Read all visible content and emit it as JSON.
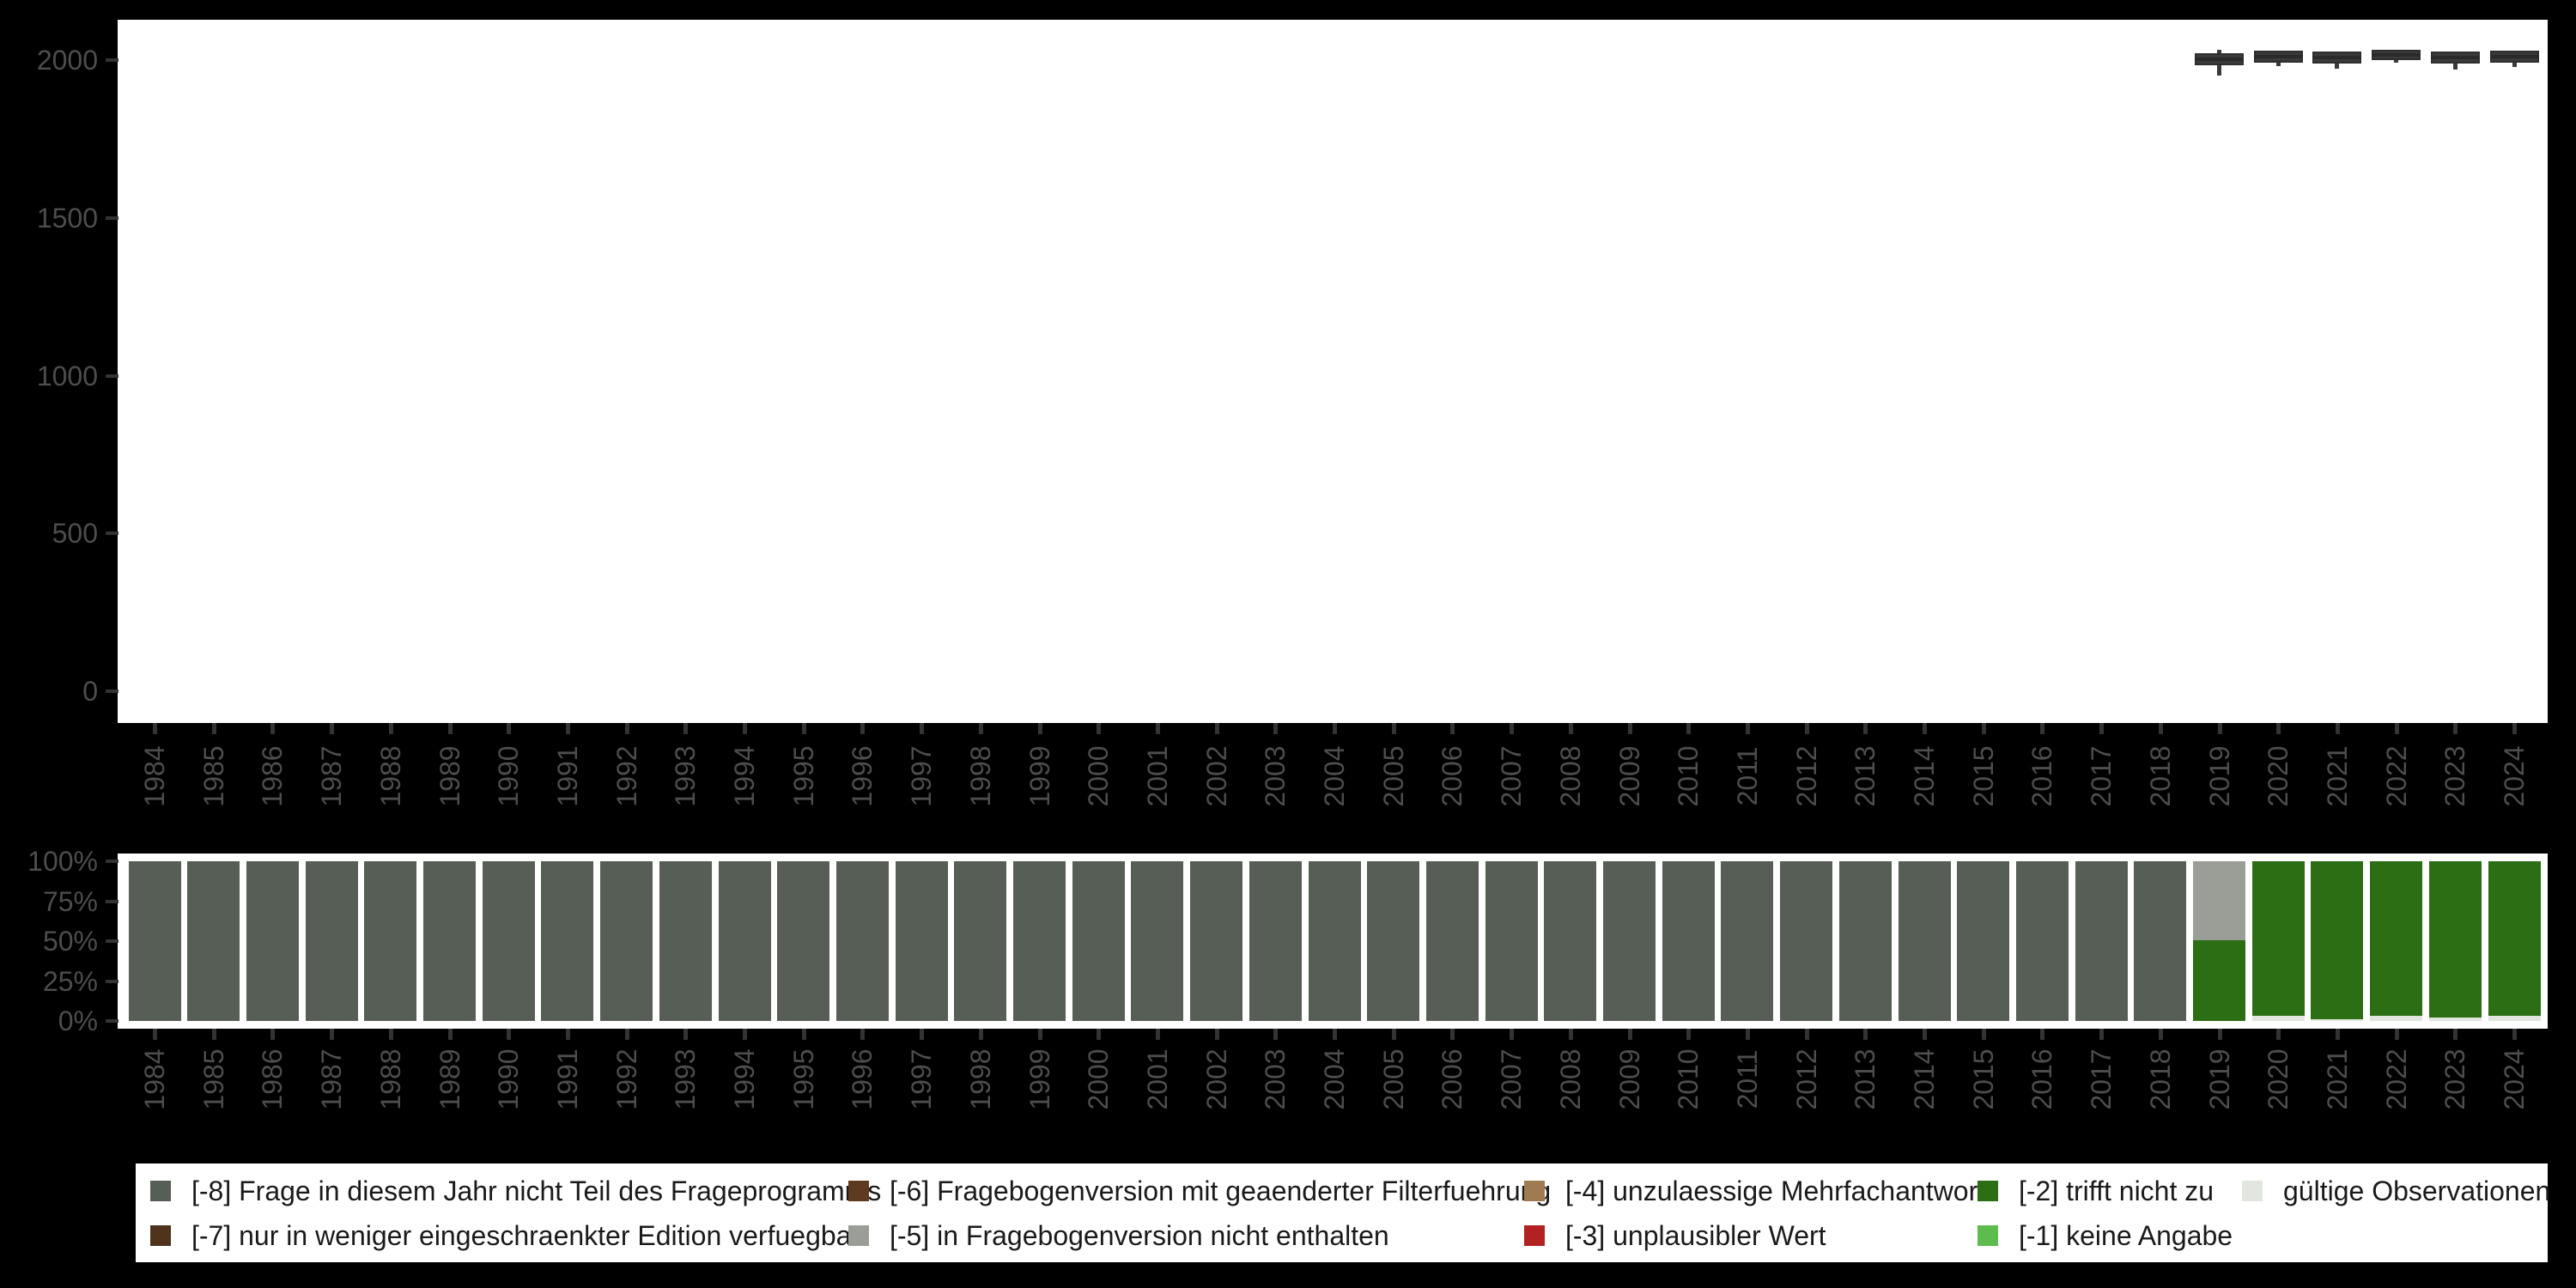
{
  "page": {
    "background_color": "#000000",
    "plot_background_color": "#ffffff",
    "axis_text_color": "#4d4d4d",
    "tick_color": "#333333",
    "legend_text_color": "#1a1a1a"
  },
  "colors": {
    "-8": "#565e55",
    "-7": "#4f331d",
    "-6": "#5e3a1f",
    "-5": "#9a9e97",
    "-4": "#a07a50",
    "-3": "#b22222",
    "-2": "#2b6e14",
    "-1": "#5ebb4e",
    "valid": "#e1e6df",
    "boxplot": "#3a3a3a"
  },
  "years": [
    "1984",
    "1985",
    "1986",
    "1987",
    "1988",
    "1989",
    "1990",
    "1991",
    "1992",
    "1993",
    "1994",
    "1995",
    "1996",
    "1997",
    "1998",
    "1999",
    "2000",
    "2001",
    "2002",
    "2003",
    "2004",
    "2005",
    "2006",
    "2007",
    "2008",
    "2009",
    "2010",
    "2011",
    "2012",
    "2013",
    "2014",
    "2015",
    "2016",
    "2017",
    "2018",
    "2019",
    "2020",
    "2021",
    "2022",
    "2023",
    "2024"
  ],
  "chart_data": [
    {
      "type": "boxplot",
      "title": "",
      "xlabel": "",
      "ylabel": "",
      "categories": [
        "1984",
        "1985",
        "1986",
        "1987",
        "1988",
        "1989",
        "1990",
        "1991",
        "1992",
        "1993",
        "1994",
        "1995",
        "1996",
        "1997",
        "1998",
        "1999",
        "2000",
        "2001",
        "2002",
        "2003",
        "2004",
        "2005",
        "2006",
        "2007",
        "2008",
        "2009",
        "2010",
        "2011",
        "2012",
        "2013",
        "2014",
        "2015",
        "2016",
        "2017",
        "2018",
        "2019",
        "2020",
        "2021",
        "2022",
        "2023",
        "2024"
      ],
      "grid": "off",
      "legend_position": "none",
      "ylim": [
        -100,
        2130
      ],
      "yticks": [
        {
          "v": 0,
          "label": "0"
        },
        {
          "v": 500,
          "label": "500"
        },
        {
          "v": 1000,
          "label": "1000"
        },
        {
          "v": 1500,
          "label": "1500"
        },
        {
          "v": 2000,
          "label": "2000"
        }
      ],
      "boxes": [
        {
          "year": "2019",
          "lo": 1951,
          "q1": 1984,
          "med": 2004,
          "q3": 2022,
          "hi": 2032
        },
        {
          "year": "2020",
          "lo": 1981,
          "q1": 1992,
          "med": 2012,
          "q3": 2030,
          "hi": 2030
        },
        {
          "year": "2021",
          "lo": 1973,
          "q1": 1989,
          "med": 2008,
          "q3": 2027,
          "hi": 2027
        },
        {
          "year": "2022",
          "lo": 1992,
          "q1": 2000,
          "med": 2016,
          "q3": 2033,
          "hi": 2033
        },
        {
          "year": "2023",
          "lo": 1970,
          "q1": 1989,
          "med": 2008,
          "q3": 2027,
          "hi": 2027
        },
        {
          "year": "2024",
          "lo": 1978,
          "q1": 1992,
          "med": 2011,
          "q3": 2030,
          "hi": 2030
        }
      ]
    },
    {
      "type": "stacked_bar_percent",
      "title": "",
      "xlabel": "",
      "ylabel": "",
      "grid": "off",
      "legend_position": "bottom",
      "categories": [
        "1984",
        "1985",
        "1986",
        "1987",
        "1988",
        "1989",
        "1990",
        "1991",
        "1992",
        "1993",
        "1994",
        "1995",
        "1996",
        "1997",
        "1998",
        "1999",
        "2000",
        "2001",
        "2002",
        "2003",
        "2004",
        "2005",
        "2006",
        "2007",
        "2008",
        "2009",
        "2010",
        "2011",
        "2012",
        "2013",
        "2014",
        "2015",
        "2016",
        "2017",
        "2018",
        "2019",
        "2020",
        "2021",
        "2022",
        "2023",
        "2024"
      ],
      "yticks": [
        {
          "v": 0,
          "label": "0%"
        },
        {
          "v": 25,
          "label": "25%"
        },
        {
          "v": 50,
          "label": "50%"
        },
        {
          "v": 75,
          "label": "75%"
        },
        {
          "v": 100,
          "label": "100%"
        }
      ],
      "bars": [
        {
          "year": "1984",
          "segments": [
            {
              "key": "-8",
              "pct": 100
            }
          ]
        },
        {
          "year": "1985",
          "segments": [
            {
              "key": "-8",
              "pct": 100
            }
          ]
        },
        {
          "year": "1986",
          "segments": [
            {
              "key": "-8",
              "pct": 100
            }
          ]
        },
        {
          "year": "1987",
          "segments": [
            {
              "key": "-8",
              "pct": 100
            }
          ]
        },
        {
          "year": "1988",
          "segments": [
            {
              "key": "-8",
              "pct": 100
            }
          ]
        },
        {
          "year": "1989",
          "segments": [
            {
              "key": "-8",
              "pct": 100
            }
          ]
        },
        {
          "year": "1990",
          "segments": [
            {
              "key": "-8",
              "pct": 100
            }
          ]
        },
        {
          "year": "1991",
          "segments": [
            {
              "key": "-8",
              "pct": 100
            }
          ]
        },
        {
          "year": "1992",
          "segments": [
            {
              "key": "-8",
              "pct": 100
            }
          ]
        },
        {
          "year": "1993",
          "segments": [
            {
              "key": "-8",
              "pct": 100
            }
          ]
        },
        {
          "year": "1994",
          "segments": [
            {
              "key": "-8",
              "pct": 100
            }
          ]
        },
        {
          "year": "1995",
          "segments": [
            {
              "key": "-8",
              "pct": 100
            }
          ]
        },
        {
          "year": "1996",
          "segments": [
            {
              "key": "-8",
              "pct": 100
            }
          ]
        },
        {
          "year": "1997",
          "segments": [
            {
              "key": "-8",
              "pct": 100
            }
          ]
        },
        {
          "year": "1998",
          "segments": [
            {
              "key": "-8",
              "pct": 100
            }
          ]
        },
        {
          "year": "1999",
          "segments": [
            {
              "key": "-8",
              "pct": 100
            }
          ]
        },
        {
          "year": "2000",
          "segments": [
            {
              "key": "-8",
              "pct": 100
            }
          ]
        },
        {
          "year": "2001",
          "segments": [
            {
              "key": "-8",
              "pct": 100
            }
          ]
        },
        {
          "year": "2002",
          "segments": [
            {
              "key": "-8",
              "pct": 100
            }
          ]
        },
        {
          "year": "2003",
          "segments": [
            {
              "key": "-8",
              "pct": 100
            }
          ]
        },
        {
          "year": "2004",
          "segments": [
            {
              "key": "-8",
              "pct": 100
            }
          ]
        },
        {
          "year": "2005",
          "segments": [
            {
              "key": "-8",
              "pct": 100
            }
          ]
        },
        {
          "year": "2006",
          "segments": [
            {
              "key": "-8",
              "pct": 100
            }
          ]
        },
        {
          "year": "2007",
          "segments": [
            {
              "key": "-8",
              "pct": 100
            }
          ]
        },
        {
          "year": "2008",
          "segments": [
            {
              "key": "-8",
              "pct": 100
            }
          ]
        },
        {
          "year": "2009",
          "segments": [
            {
              "key": "-8",
              "pct": 100
            }
          ]
        },
        {
          "year": "2010",
          "segments": [
            {
              "key": "-8",
              "pct": 100
            }
          ]
        },
        {
          "year": "2011",
          "segments": [
            {
              "key": "-8",
              "pct": 100
            }
          ]
        },
        {
          "year": "2012",
          "segments": [
            {
              "key": "-8",
              "pct": 100
            }
          ]
        },
        {
          "year": "2013",
          "segments": [
            {
              "key": "-8",
              "pct": 100
            }
          ]
        },
        {
          "year": "2014",
          "segments": [
            {
              "key": "-8",
              "pct": 100
            }
          ]
        },
        {
          "year": "2015",
          "segments": [
            {
              "key": "-8",
              "pct": 100
            }
          ]
        },
        {
          "year": "2016",
          "segments": [
            {
              "key": "-8",
              "pct": 100
            }
          ]
        },
        {
          "year": "2017",
          "segments": [
            {
              "key": "-8",
              "pct": 100
            }
          ]
        },
        {
          "year": "2018",
          "segments": [
            {
              "key": "-8",
              "pct": 100
            }
          ]
        },
        {
          "year": "2019",
          "segments": [
            {
              "key": "-2",
              "pct": 50.3
            },
            {
              "key": "-5",
              "pct": 49.7
            }
          ]
        },
        {
          "year": "2020",
          "segments": [
            {
              "key": "valid",
              "pct": 3.2
            },
            {
              "key": "-2",
              "pct": 96.8
            }
          ]
        },
        {
          "year": "2021",
          "segments": [
            {
              "key": "valid",
              "pct": 1.2
            },
            {
              "key": "-2",
              "pct": 98.8
            }
          ]
        },
        {
          "year": "2022",
          "segments": [
            {
              "key": "valid",
              "pct": 3.0
            },
            {
              "key": "-2",
              "pct": 97.0
            }
          ]
        },
        {
          "year": "2023",
          "segments": [
            {
              "key": "valid",
              "pct": 2.3
            },
            {
              "key": "-2",
              "pct": 97.7
            }
          ]
        },
        {
          "year": "2024",
          "segments": [
            {
              "key": "valid",
              "pct": 3.0
            },
            {
              "key": "-2",
              "pct": 97.0
            }
          ]
        }
      ]
    }
  ],
  "legend": {
    "columns": [
      [
        {
          "key": "-8",
          "label": "[-8] Frage in diesem Jahr nicht Teil des Frageprogramms"
        },
        {
          "key": "-7",
          "label": "[-7] nur in weniger eingeschraenkter Edition verfuegbar"
        }
      ],
      [
        {
          "key": "-6",
          "label": "[-6] Fragebogenversion mit geaenderter Filterfuehrung"
        },
        {
          "key": "-5",
          "label": "[-5] in Fragebogenversion nicht enthalten"
        }
      ],
      [
        {
          "key": "-4",
          "label": "[-4] unzulaessige Mehrfachantwort"
        },
        {
          "key": "-3",
          "label": "[-3] unplausibler Wert"
        }
      ],
      [
        {
          "key": "-2",
          "label": "[-2] trifft nicht zu"
        },
        {
          "key": "-1",
          "label": "[-1] keine Angabe"
        }
      ],
      [
        {
          "key": "valid",
          "label": "gültige Observationen"
        }
      ]
    ]
  }
}
